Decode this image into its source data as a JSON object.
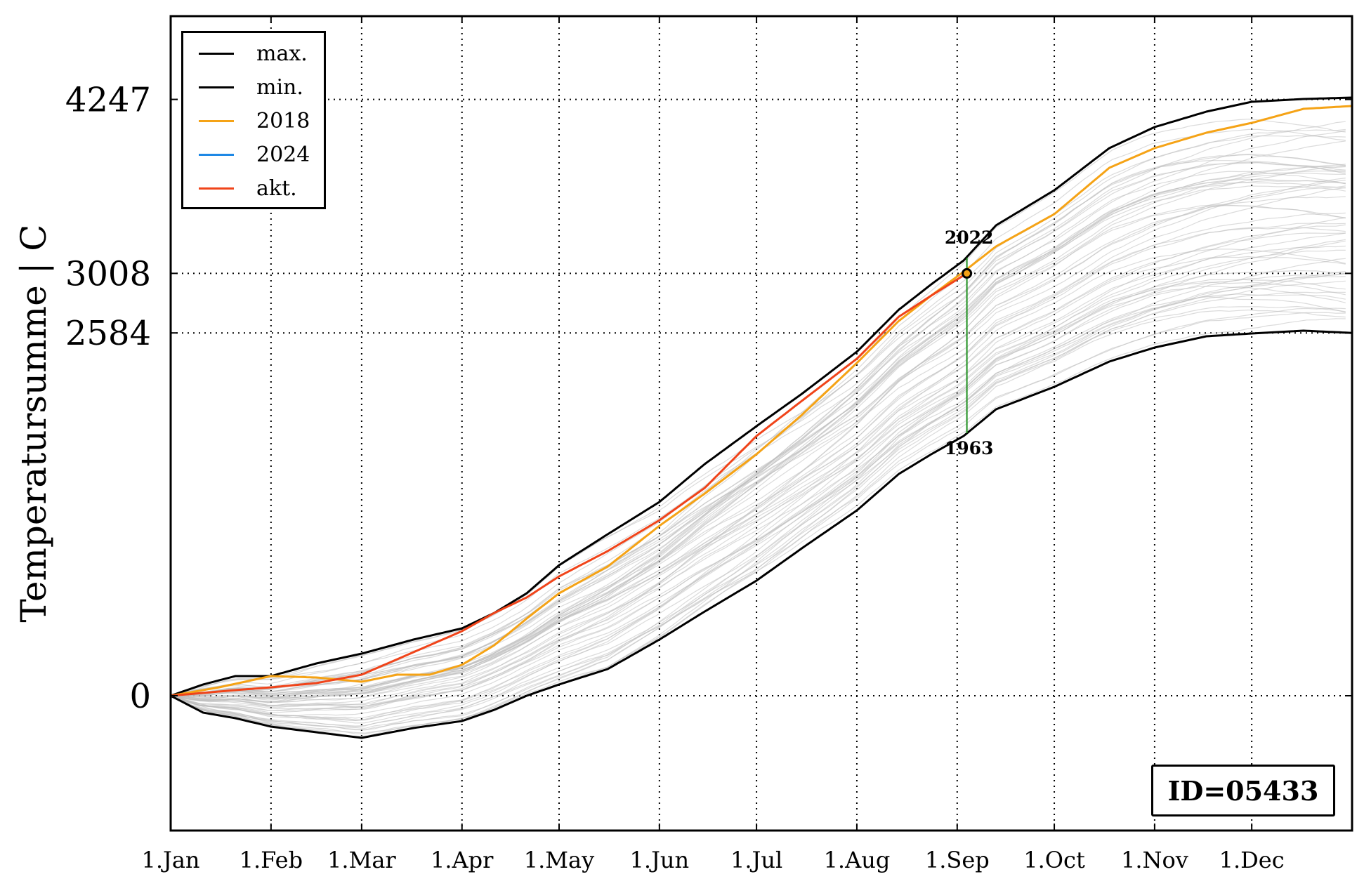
{
  "chart_data": {
    "type": "line",
    "title": "",
    "xlabel": "",
    "ylabel": "Temperatursumme | C",
    "x_tick_labels": [
      "1.Jan",
      "1.Feb",
      "1.Mar",
      "1.Apr",
      "1.May",
      "1.Jun",
      "1.Jul",
      "1.Aug",
      "1.Sep",
      "1.Oct",
      "1.Nov",
      "1.Dec"
    ],
    "x_tick_days": [
      0,
      31,
      59,
      90,
      120,
      151,
      181,
      212,
      243,
      273,
      304,
      334
    ],
    "xlim_days": [
      0,
      365
    ],
    "ylim": [
      -960,
      4840
    ],
    "y_tick_values": [
      0,
      2584,
      3008,
      4247
    ],
    "y_tick_labels": [
      "0",
      "2584",
      "3008",
      "4247"
    ],
    "grid": true,
    "legend_position": "top-left",
    "legend": [
      {
        "label": "max.",
        "color": "#000000"
      },
      {
        "label": "min.",
        "color": "#000000"
      },
      {
        "label": "2018",
        "color": "#f5a316"
      },
      {
        "label": "2024",
        "color": "#1e88e5"
      },
      {
        "label": "akt.",
        "color": "#f0441a"
      }
    ],
    "series": [
      {
        "name": "max.",
        "color": "#000000",
        "x": [
          0,
          10,
          20,
          31,
          45,
          59,
          75,
          90,
          100,
          110,
          120,
          135,
          151,
          165,
          181,
          195,
          212,
          225,
          235,
          245,
          255,
          273,
          290,
          304,
          320,
          334,
          350,
          365
        ],
        "y": [
          0,
          80,
          140,
          140,
          230,
          300,
          400,
          480,
          590,
          730,
          930,
          1150,
          1380,
          1650,
          1920,
          2150,
          2450,
          2750,
          2930,
          3100,
          3350,
          3600,
          3900,
          4050,
          4160,
          4230,
          4250,
          4260
        ]
      },
      {
        "name": "min.",
        "color": "#000000",
        "x": [
          0,
          10,
          20,
          31,
          45,
          59,
          75,
          90,
          100,
          110,
          120,
          135,
          151,
          165,
          181,
          195,
          212,
          225,
          235,
          245,
          255,
          273,
          290,
          304,
          320,
          334,
          350,
          365
        ],
        "y": [
          0,
          -120,
          -160,
          -220,
          -260,
          -300,
          -230,
          -180,
          -100,
          0,
          80,
          190,
          400,
          600,
          820,
          1050,
          1320,
          1580,
          1720,
          1850,
          2040,
          2200,
          2380,
          2480,
          2560,
          2580,
          2600,
          2584
        ]
      },
      {
        "name": "2018",
        "color": "#f5a316",
        "x": [
          0,
          15,
          31,
          45,
          59,
          70,
          80,
          90,
          100,
          110,
          120,
          135,
          151,
          165,
          181,
          195,
          212,
          225,
          235,
          245,
          255,
          273,
          290,
          304,
          320,
          334,
          350,
          365
        ],
        "y": [
          0,
          60,
          140,
          130,
          100,
          150,
          150,
          220,
          360,
          550,
          730,
          920,
          1210,
          1440,
          1720,
          2000,
          2370,
          2670,
          2850,
          3020,
          3200,
          3430,
          3760,
          3900,
          4010,
          4080,
          4180,
          4200
        ]
      },
      {
        "name": "akt.",
        "color": "#f0441a",
        "x": [
          0,
          10,
          20,
          31,
          45,
          59,
          70,
          80,
          90,
          100,
          110,
          120,
          135,
          151,
          165,
          181,
          195,
          212,
          225,
          235,
          246
        ],
        "y": [
          0,
          20,
          40,
          60,
          90,
          150,
          260,
          360,
          460,
          590,
          700,
          850,
          1030,
          1250,
          1480,
          1850,
          2100,
          2400,
          2700,
          2850,
          3008
        ]
      }
    ],
    "background_years_color": "#bdbdbd",
    "annotations": [
      {
        "text": "2022",
        "x_day": 246,
        "y": 3260
      },
      {
        "text": "1963",
        "x_day": 246,
        "y": 1760
      }
    ],
    "marker": {
      "x_day": 246,
      "y": 3008
    },
    "vline": {
      "x_day": 246,
      "y_from": 1870,
      "y_to": 3120,
      "color": "#1f8f1f"
    }
  },
  "id_label": "ID=05433"
}
